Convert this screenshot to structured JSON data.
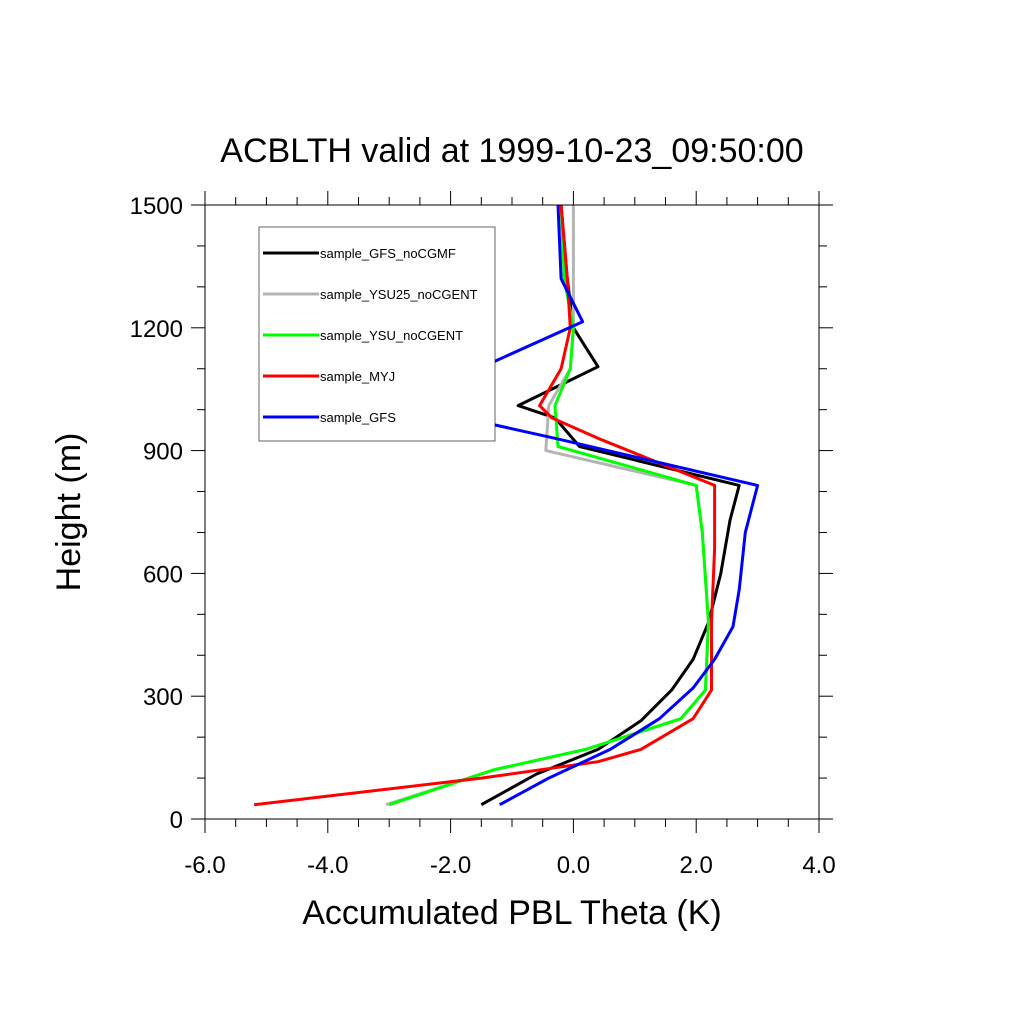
{
  "chart_data": {
    "type": "line",
    "title": "ACBLTH valid at 1999-10-23_09:50:00",
    "xlabel": "Accumulated PBL Theta (K)",
    "ylabel": "Height (m)",
    "xlim": [
      -6.0,
      4.0
    ],
    "ylim": [
      0,
      1500
    ],
    "xticks": [
      -6.0,
      -4.0,
      -2.0,
      0.0,
      2.0,
      4.0
    ],
    "xtick_labels": [
      "-6.0",
      "-4.0",
      "-2.0",
      "0.0",
      "2.0",
      "4.0"
    ],
    "yticks": [
      0,
      300,
      600,
      900,
      1200,
      1500
    ],
    "ytick_labels": [
      "0",
      "300",
      "600",
      "900",
      "1200",
      "1500"
    ],
    "grid": false,
    "legend_position": "top-left",
    "series": [
      {
        "name": "sample_GFS_noCGMF",
        "color": "#000000",
        "points": [
          [
            -1.5,
            35
          ],
          [
            -0.6,
            110
          ],
          [
            0.4,
            170
          ],
          [
            1.1,
            240
          ],
          [
            1.6,
            315
          ],
          [
            1.95,
            390
          ],
          [
            2.2,
            480
          ],
          [
            2.4,
            600
          ],
          [
            2.55,
            730
          ],
          [
            2.7,
            815
          ],
          [
            0.1,
            910
          ],
          [
            -0.3,
            980
          ],
          [
            -0.9,
            1010
          ],
          [
            0.4,
            1105
          ],
          [
            0.0,
            1200
          ],
          [
            -0.1,
            1320
          ],
          [
            -0.2,
            1500
          ]
        ]
      },
      {
        "name": "sample_YSU25_noCGENT",
        "color": "#b4b4b4",
        "points": [
          [
            -3.05,
            35
          ],
          [
            -1.3,
            120
          ],
          [
            0.2,
            170
          ],
          [
            1.75,
            245
          ],
          [
            2.15,
            315
          ],
          [
            2.2,
            480
          ],
          [
            2.1,
            700
          ],
          [
            2.0,
            815
          ],
          [
            -0.45,
            900
          ],
          [
            -0.4,
            1010
          ],
          [
            -0.05,
            1100
          ],
          [
            0.0,
            1200
          ],
          [
            0.0,
            1320
          ],
          [
            0.0,
            1500
          ]
        ]
      },
      {
        "name": "sample_YSU_noCGENT",
        "color": "#00ff00",
        "points": [
          [
            -3.0,
            35
          ],
          [
            -1.3,
            120
          ],
          [
            0.2,
            170
          ],
          [
            1.75,
            245
          ],
          [
            2.15,
            315
          ],
          [
            2.2,
            480
          ],
          [
            2.1,
            700
          ],
          [
            2.0,
            815
          ],
          [
            -0.25,
            910
          ],
          [
            -0.3,
            1010
          ],
          [
            -0.05,
            1100
          ],
          [
            0.0,
            1200
          ],
          [
            -0.15,
            1320
          ],
          [
            -0.2,
            1500
          ]
        ]
      },
      {
        "name": "sample_MYJ",
        "color": "#ff0000",
        "points": [
          [
            -5.2,
            35
          ],
          [
            -1.5,
            100
          ],
          [
            0.4,
            140
          ],
          [
            1.1,
            170
          ],
          [
            1.95,
            245
          ],
          [
            2.25,
            315
          ],
          [
            2.25,
            480
          ],
          [
            2.3,
            660
          ],
          [
            2.3,
            815
          ],
          [
            0.4,
            930
          ],
          [
            -0.35,
            980
          ],
          [
            -0.55,
            1010
          ],
          [
            -0.2,
            1100
          ],
          [
            -0.05,
            1200
          ],
          [
            -0.1,
            1320
          ],
          [
            -0.2,
            1500
          ]
        ]
      },
      {
        "name": "sample_GFS",
        "color": "#0000ff",
        "points": [
          [
            -1.2,
            35
          ],
          [
            -0.4,
            100
          ],
          [
            0.6,
            170
          ],
          [
            1.4,
            245
          ],
          [
            1.95,
            320
          ],
          [
            2.3,
            390
          ],
          [
            2.6,
            470
          ],
          [
            2.7,
            560
          ],
          [
            2.8,
            700
          ],
          [
            3.0,
            815
          ],
          [
            -0.3,
            930
          ],
          [
            -2.7,
            1010
          ],
          [
            -1.4,
            1110
          ],
          [
            0.15,
            1215
          ],
          [
            -0.2,
            1320
          ],
          [
            -0.25,
            1500
          ]
        ]
      }
    ]
  }
}
